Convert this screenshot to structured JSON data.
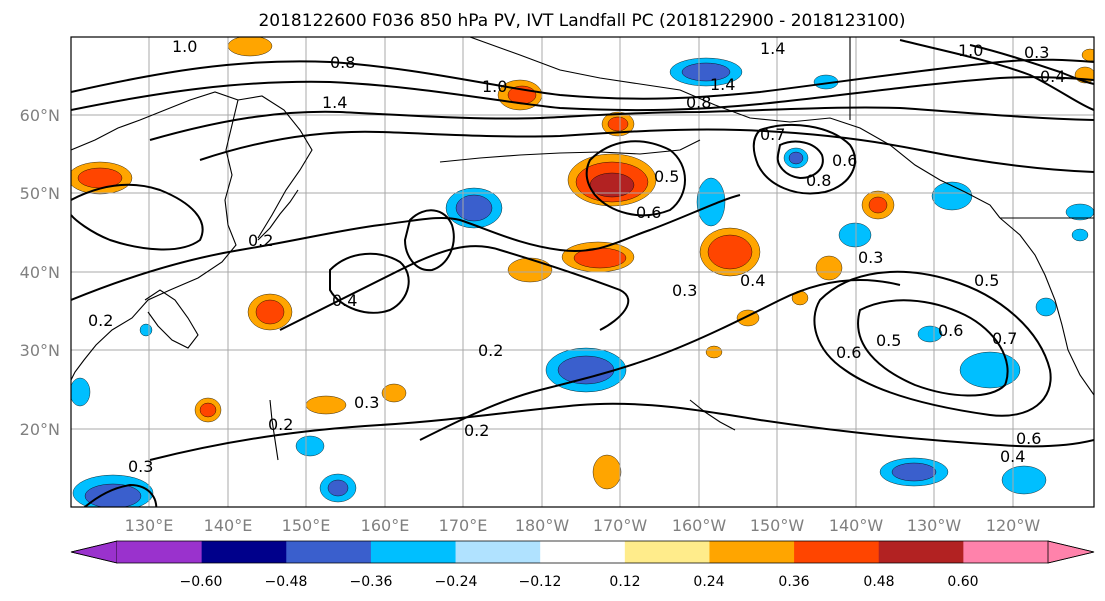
{
  "title": "2018122600 F036 850 hPa PV, IVT Landfall PC (2018122900 - 2018123100)",
  "map": {
    "lat_labels": [
      "60°N",
      "50°N",
      "40°N",
      "30°N",
      "20°N"
    ],
    "lon_labels": [
      "130°E",
      "140°E",
      "150°E",
      "160°E",
      "170°E",
      "180°W",
      "170°W",
      "160°W",
      "150°W",
      "140°W",
      "130°W",
      "120°W"
    ],
    "contour_labels": [
      {
        "text": "1.0",
        "k": "c1"
      },
      {
        "text": "0.8",
        "k": "c2"
      },
      {
        "text": "1.4",
        "k": "c3"
      },
      {
        "text": "1.0",
        "k": "c4"
      },
      {
        "text": "1.4",
        "k": "c5"
      },
      {
        "text": "0.8",
        "k": "c6"
      },
      {
        "text": "1.4",
        "k": "c7"
      },
      {
        "text": "1.0",
        "k": "c8"
      },
      {
        "text": "0.3",
        "k": "c9"
      },
      {
        "text": "0.4",
        "k": "c10"
      },
      {
        "text": "0.7",
        "k": "c11"
      },
      {
        "text": "0.6",
        "k": "c12"
      },
      {
        "text": "0.5",
        "k": "c13"
      },
      {
        "text": "0.6",
        "k": "c14"
      },
      {
        "text": "0.8",
        "k": "c15"
      },
      {
        "text": "0.2",
        "k": "c16"
      },
      {
        "text": "0.4",
        "k": "c17"
      },
      {
        "text": "0.3",
        "k": "c18"
      },
      {
        "text": "0.4",
        "k": "c19"
      },
      {
        "text": "0.3",
        "k": "c20"
      },
      {
        "text": "0.5",
        "k": "c21"
      },
      {
        "text": "0.6",
        "k": "c22"
      },
      {
        "text": "0.5",
        "k": "c23"
      },
      {
        "text": "0.6",
        "k": "c24"
      },
      {
        "text": "0.7",
        "k": "c25"
      },
      {
        "text": "0.2",
        "k": "c26"
      },
      {
        "text": "0.2",
        "k": "c27"
      },
      {
        "text": "0.3",
        "k": "c28"
      },
      {
        "text": "0.2",
        "k": "c29"
      },
      {
        "text": "0.6",
        "k": "c30"
      },
      {
        "text": "0.4",
        "k": "c31"
      },
      {
        "text": "0.2",
        "k": "c32"
      },
      {
        "text": "0.3",
        "k": "c33"
      }
    ]
  },
  "colorbar": {
    "ticks": [
      "−0.60",
      "−0.48",
      "−0.36",
      "−0.24",
      "−0.12",
      "0.12",
      "0.24",
      "0.36",
      "0.48",
      "0.60"
    ],
    "colors": [
      "#9a32cd",
      "#00008b",
      "#3a5fcd",
      "#00bfff",
      "#b0e2ff",
      "#ffffff",
      "#ffec8b",
      "#ffa500",
      "#ff4500",
      "#b22222",
      "#ff82ab"
    ]
  },
  "colors": {
    "neg_dark": "#3a5fcd",
    "neg_mid": "#00bfff",
    "neg_light": "#b0e2ff",
    "pos_light": "#ffec8b",
    "pos_mid": "#ffa500",
    "pos_dark": "#ff4500",
    "pos_max": "#b22222"
  }
}
